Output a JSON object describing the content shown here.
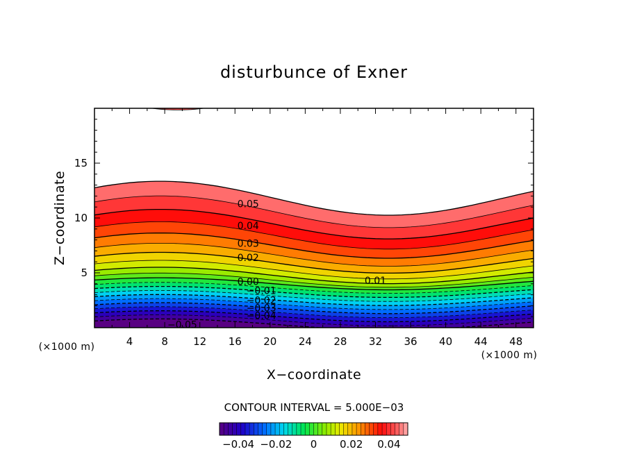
{
  "chart_data": {
    "type": "contour",
    "title": "disturbunce of Exner",
    "xlabel": "X−coordinate",
    "ylabel": "Z−coordinate",
    "x_unit": "(×1000 m)",
    "y_unit": "(×1000 m)",
    "xlim": [
      0,
      50
    ],
    "ylim": [
      0,
      20
    ],
    "x_ticks": [
      4,
      8,
      12,
      16,
      20,
      24,
      28,
      32,
      36,
      40,
      44,
      48
    ],
    "y_ticks": [
      5,
      10,
      15
    ],
    "field": "disturbance of Exner function, filled contours from -0.05 to 0.05; zero level near z=4.5 at x=8 and z=3.5 at x=34",
    "contour_labels": [
      {
        "text": "0.05",
        "x": 17.5,
        "z": 11.3
      },
      {
        "text": "0.04",
        "x": 17.5,
        "z": 9.3
      },
      {
        "text": "0.03",
        "x": 17.5,
        "z": 7.7
      },
      {
        "text": "0.02",
        "x": 17.5,
        "z": 6.4
      },
      {
        "text": "0.01",
        "x": 32,
        "z": 4.3
      },
      {
        "text": "0.00",
        "x": 17.5,
        "z": 4.2
      },
      {
        "text": "−0.01",
        "x": 19,
        "z": 3.4
      },
      {
        "text": "−0.02",
        "x": 19,
        "z": 2.5
      },
      {
        "text": "−0.03",
        "x": 19,
        "z": 1.8
      },
      {
        "text": "−0.04",
        "x": 19,
        "z": 1.1
      },
      {
        "text": "−0.05",
        "x": 10,
        "z": 0.3
      }
    ],
    "colorbar": {
      "range": [
        -0.05,
        0.05
      ],
      "tick_labels": [
        "−0.04",
        "−0.02",
        "0",
        "0.02",
        "0.04"
      ],
      "tick_values": [
        -0.04,
        -0.02,
        0,
        0.02,
        0.04
      ]
    },
    "contour_interval_text": "CONTOUR INTERVAL = 5.000E−03"
  }
}
